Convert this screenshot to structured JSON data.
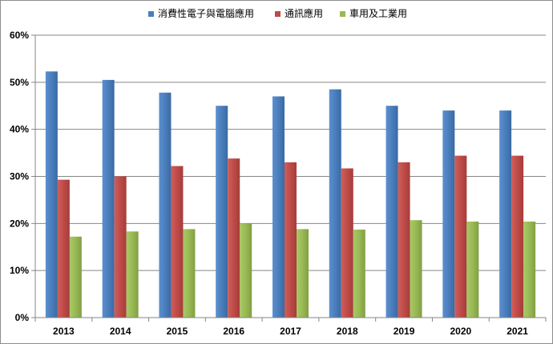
{
  "chart_data": {
    "type": "bar",
    "categories": [
      "2013",
      "2014",
      "2015",
      "2016",
      "2017",
      "2018",
      "2019",
      "2020",
      "2021"
    ],
    "series": [
      {
        "name": "消費性電子與電腦應用",
        "color": "#4a7ebb",
        "values": [
          52.3,
          50.5,
          47.8,
          45.0,
          47.0,
          48.5,
          45.0,
          44.0,
          44.0
        ]
      },
      {
        "name": "通訊應用",
        "color": "#be4b48",
        "values": [
          29.3,
          30.0,
          32.2,
          33.8,
          33.0,
          31.7,
          33.0,
          34.4,
          34.4
        ]
      },
      {
        "name": "車用及工業用",
        "color": "#98b954",
        "values": [
          17.2,
          18.3,
          18.8,
          20.0,
          18.8,
          18.7,
          20.7,
          20.4,
          20.4
        ]
      }
    ],
    "ylim": [
      0,
      60
    ],
    "yticks": [
      "0%",
      "10%",
      "20%",
      "30%",
      "40%",
      "50%",
      "60%"
    ],
    "grid": true,
    "legend_position": "top"
  }
}
